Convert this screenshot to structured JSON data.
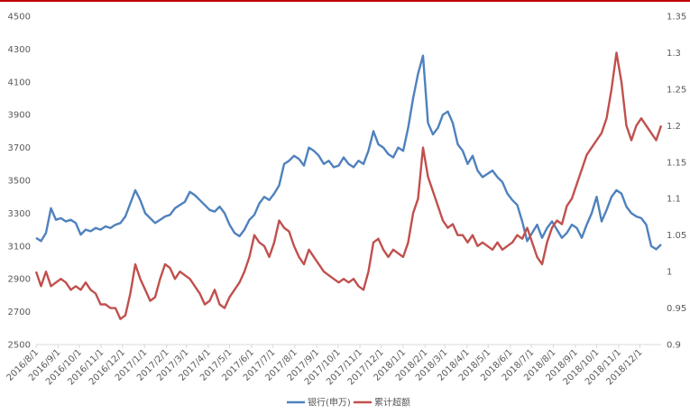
{
  "chart_data": {
    "type": "line",
    "title": "",
    "xlabel": "",
    "ylabel": "",
    "x_tick_labels": [
      "2016/8/1",
      "2016/9/1",
      "2016/10/1",
      "2016/11/1",
      "2016/12/1",
      "2017/1/1",
      "2017/2/1",
      "2017/3/1",
      "2017/4/1",
      "2017/5/1",
      "2017/6/1",
      "2017/7/1",
      "2017/8/1",
      "2017/9/1",
      "2017/10/1",
      "2017/11/1",
      "2017/12/1",
      "2018/1/1",
      "2018/2/1",
      "2018/3/1",
      "2018/4/1",
      "2018/5/1",
      "2018/6/1",
      "2018/7/1",
      "2018/8/1",
      "2018/9/1",
      "2018/10/1",
      "2018/11/1",
      "2018/12/1"
    ],
    "x_date_range": [
      "2016-08-01",
      "2018-12-31"
    ],
    "y_left": {
      "min": 2500,
      "max": 4500,
      "step": 200,
      "ticks": [
        "2500",
        "2700",
        "2900",
        "3100",
        "3300",
        "3500",
        "3700",
        "3900",
        "4100",
        "4300",
        "4500"
      ]
    },
    "y_right": {
      "min": 0.9,
      "max": 1.35,
      "step": 0.05,
      "ticks": [
        "0.9",
        "0.95",
        "1",
        "1.05",
        "1.1",
        "1.15",
        "1.2",
        "1.25",
        "1.3",
        "1.35"
      ]
    },
    "grid": false,
    "legend_position": "bottom",
    "series": [
      {
        "name": "银行(申万)",
        "axis": "left",
        "color": "#4f81bd",
        "points": [
          [
            "2016-08-01",
            3150
          ],
          [
            "2016-08-08",
            3130
          ],
          [
            "2016-08-15",
            3180
          ],
          [
            "2016-08-22",
            3330
          ],
          [
            "2016-08-29",
            3260
          ],
          [
            "2016-09-05",
            3270
          ],
          [
            "2016-09-12",
            3250
          ],
          [
            "2016-09-19",
            3260
          ],
          [
            "2016-09-26",
            3240
          ],
          [
            "2016-10-03",
            3170
          ],
          [
            "2016-10-10",
            3200
          ],
          [
            "2016-10-17",
            3190
          ],
          [
            "2016-10-24",
            3210
          ],
          [
            "2016-10-31",
            3200
          ],
          [
            "2016-11-07",
            3220
          ],
          [
            "2016-11-14",
            3210
          ],
          [
            "2016-11-21",
            3230
          ],
          [
            "2016-11-28",
            3240
          ],
          [
            "2016-12-05",
            3280
          ],
          [
            "2016-12-12",
            3360
          ],
          [
            "2016-12-19",
            3440
          ],
          [
            "2016-12-26",
            3380
          ],
          [
            "2017-01-02",
            3300
          ],
          [
            "2017-01-09",
            3270
          ],
          [
            "2017-01-16",
            3240
          ],
          [
            "2017-01-23",
            3260
          ],
          [
            "2017-01-30",
            3280
          ],
          [
            "2017-02-06",
            3290
          ],
          [
            "2017-02-13",
            3330
          ],
          [
            "2017-02-20",
            3350
          ],
          [
            "2017-02-27",
            3370
          ],
          [
            "2017-03-06",
            3430
          ],
          [
            "2017-03-13",
            3410
          ],
          [
            "2017-03-20",
            3380
          ],
          [
            "2017-03-27",
            3350
          ],
          [
            "2017-04-03",
            3320
          ],
          [
            "2017-04-10",
            3310
          ],
          [
            "2017-04-17",
            3340
          ],
          [
            "2017-04-24",
            3300
          ],
          [
            "2017-05-01",
            3230
          ],
          [
            "2017-05-08",
            3180
          ],
          [
            "2017-05-15",
            3160
          ],
          [
            "2017-05-22",
            3200
          ],
          [
            "2017-05-29",
            3260
          ],
          [
            "2017-06-05",
            3290
          ],
          [
            "2017-06-12",
            3360
          ],
          [
            "2017-06-19",
            3400
          ],
          [
            "2017-06-26",
            3380
          ],
          [
            "2017-07-03",
            3420
          ],
          [
            "2017-07-10",
            3470
          ],
          [
            "2017-07-17",
            3600
          ],
          [
            "2017-07-24",
            3620
          ],
          [
            "2017-07-31",
            3650
          ],
          [
            "2017-08-07",
            3630
          ],
          [
            "2017-08-14",
            3590
          ],
          [
            "2017-08-21",
            3700
          ],
          [
            "2017-08-28",
            3680
          ],
          [
            "2017-09-04",
            3650
          ],
          [
            "2017-09-11",
            3600
          ],
          [
            "2017-09-18",
            3620
          ],
          [
            "2017-09-25",
            3580
          ],
          [
            "2017-10-02",
            3590
          ],
          [
            "2017-10-09",
            3640
          ],
          [
            "2017-10-16",
            3600
          ],
          [
            "2017-10-23",
            3580
          ],
          [
            "2017-10-30",
            3620
          ],
          [
            "2017-11-06",
            3600
          ],
          [
            "2017-11-13",
            3680
          ],
          [
            "2017-11-20",
            3800
          ],
          [
            "2017-11-27",
            3720
          ],
          [
            "2017-12-04",
            3700
          ],
          [
            "2017-12-11",
            3660
          ],
          [
            "2017-12-18",
            3640
          ],
          [
            "2017-12-25",
            3700
          ],
          [
            "2018-01-01",
            3680
          ],
          [
            "2018-01-08",
            3820
          ],
          [
            "2018-01-15",
            4000
          ],
          [
            "2018-01-22",
            4150
          ],
          [
            "2018-01-29",
            4260
          ],
          [
            "2018-02-05",
            3850
          ],
          [
            "2018-02-12",
            3780
          ],
          [
            "2018-02-19",
            3820
          ],
          [
            "2018-02-26",
            3900
          ],
          [
            "2018-03-05",
            3920
          ],
          [
            "2018-03-12",
            3850
          ],
          [
            "2018-03-19",
            3720
          ],
          [
            "2018-03-26",
            3680
          ],
          [
            "2018-04-02",
            3600
          ],
          [
            "2018-04-09",
            3650
          ],
          [
            "2018-04-16",
            3560
          ],
          [
            "2018-04-23",
            3520
          ],
          [
            "2018-04-30",
            3540
          ],
          [
            "2018-05-07",
            3560
          ],
          [
            "2018-05-14",
            3520
          ],
          [
            "2018-05-21",
            3490
          ],
          [
            "2018-05-28",
            3420
          ],
          [
            "2018-06-04",
            3380
          ],
          [
            "2018-06-11",
            3350
          ],
          [
            "2018-06-18",
            3250
          ],
          [
            "2018-06-25",
            3130
          ],
          [
            "2018-07-02",
            3180
          ],
          [
            "2018-07-09",
            3230
          ],
          [
            "2018-07-16",
            3150
          ],
          [
            "2018-07-23",
            3210
          ],
          [
            "2018-07-30",
            3250
          ],
          [
            "2018-08-06",
            3200
          ],
          [
            "2018-08-13",
            3150
          ],
          [
            "2018-08-20",
            3180
          ],
          [
            "2018-08-27",
            3230
          ],
          [
            "2018-09-03",
            3210
          ],
          [
            "2018-09-10",
            3150
          ],
          [
            "2018-09-17",
            3230
          ],
          [
            "2018-09-24",
            3300
          ],
          [
            "2018-10-01",
            3400
          ],
          [
            "2018-10-08",
            3250
          ],
          [
            "2018-10-15",
            3320
          ],
          [
            "2018-10-22",
            3400
          ],
          [
            "2018-10-29",
            3440
          ],
          [
            "2018-11-05",
            3420
          ],
          [
            "2018-11-12",
            3340
          ],
          [
            "2018-11-19",
            3300
          ],
          [
            "2018-11-26",
            3280
          ],
          [
            "2018-12-03",
            3270
          ],
          [
            "2018-12-10",
            3230
          ],
          [
            "2018-12-17",
            3100
          ],
          [
            "2018-12-24",
            3080
          ],
          [
            "2018-12-31",
            3110
          ]
        ]
      },
      {
        "name": "累计超额",
        "axis": "right",
        "color": "#c0504d",
        "points": [
          [
            "2016-08-01",
            1.0
          ],
          [
            "2016-08-08",
            0.98
          ],
          [
            "2016-08-15",
            1.0
          ],
          [
            "2016-08-22",
            0.98
          ],
          [
            "2016-08-29",
            0.985
          ],
          [
            "2016-09-05",
            0.99
          ],
          [
            "2016-09-12",
            0.985
          ],
          [
            "2016-09-19",
            0.975
          ],
          [
            "2016-09-26",
            0.98
          ],
          [
            "2016-10-03",
            0.975
          ],
          [
            "2016-10-10",
            0.985
          ],
          [
            "2016-10-17",
            0.975
          ],
          [
            "2016-10-24",
            0.97
          ],
          [
            "2016-10-31",
            0.955
          ],
          [
            "2016-11-07",
            0.955
          ],
          [
            "2016-11-14",
            0.95
          ],
          [
            "2016-11-21",
            0.95
          ],
          [
            "2016-11-28",
            0.935
          ],
          [
            "2016-12-05",
            0.94
          ],
          [
            "2016-12-12",
            0.97
          ],
          [
            "2016-12-19",
            1.01
          ],
          [
            "2016-12-26",
            0.99
          ],
          [
            "2017-01-02",
            0.975
          ],
          [
            "2017-01-09",
            0.96
          ],
          [
            "2017-01-16",
            0.965
          ],
          [
            "2017-01-23",
            0.99
          ],
          [
            "2017-01-30",
            1.01
          ],
          [
            "2017-02-06",
            1.005
          ],
          [
            "2017-02-13",
            0.99
          ],
          [
            "2017-02-20",
            1.0
          ],
          [
            "2017-02-27",
            0.995
          ],
          [
            "2017-03-06",
            0.99
          ],
          [
            "2017-03-13",
            0.98
          ],
          [
            "2017-03-20",
            0.97
          ],
          [
            "2017-03-27",
            0.955
          ],
          [
            "2017-04-03",
            0.96
          ],
          [
            "2017-04-10",
            0.975
          ],
          [
            "2017-04-17",
            0.955
          ],
          [
            "2017-04-24",
            0.95
          ],
          [
            "2017-05-01",
            0.965
          ],
          [
            "2017-05-08",
            0.975
          ],
          [
            "2017-05-15",
            0.985
          ],
          [
            "2017-05-22",
            1.0
          ],
          [
            "2017-05-29",
            1.02
          ],
          [
            "2017-06-05",
            1.05
          ],
          [
            "2017-06-12",
            1.04
          ],
          [
            "2017-06-19",
            1.035
          ],
          [
            "2017-06-26",
            1.02
          ],
          [
            "2017-07-03",
            1.04
          ],
          [
            "2017-07-10",
            1.07
          ],
          [
            "2017-07-17",
            1.06
          ],
          [
            "2017-07-24",
            1.055
          ],
          [
            "2017-07-31",
            1.035
          ],
          [
            "2017-08-07",
            1.02
          ],
          [
            "2017-08-14",
            1.01
          ],
          [
            "2017-08-21",
            1.03
          ],
          [
            "2017-08-28",
            1.02
          ],
          [
            "2017-09-04",
            1.01
          ],
          [
            "2017-09-11",
            1.0
          ],
          [
            "2017-09-18",
            0.995
          ],
          [
            "2017-09-25",
            0.99
          ],
          [
            "2017-10-02",
            0.985
          ],
          [
            "2017-10-09",
            0.99
          ],
          [
            "2017-10-16",
            0.985
          ],
          [
            "2017-10-23",
            0.99
          ],
          [
            "2017-10-30",
            0.98
          ],
          [
            "2017-11-06",
            0.975
          ],
          [
            "2017-11-13",
            1.0
          ],
          [
            "2017-11-20",
            1.04
          ],
          [
            "2017-11-27",
            1.045
          ],
          [
            "2017-12-04",
            1.03
          ],
          [
            "2017-12-11",
            1.02
          ],
          [
            "2017-12-18",
            1.03
          ],
          [
            "2017-12-25",
            1.025
          ],
          [
            "2018-01-01",
            1.02
          ],
          [
            "2018-01-08",
            1.04
          ],
          [
            "2018-01-15",
            1.08
          ],
          [
            "2018-01-22",
            1.1
          ],
          [
            "2018-01-29",
            1.17
          ],
          [
            "2018-02-05",
            1.13
          ],
          [
            "2018-02-12",
            1.11
          ],
          [
            "2018-02-19",
            1.09
          ],
          [
            "2018-02-26",
            1.07
          ],
          [
            "2018-03-05",
            1.06
          ],
          [
            "2018-03-12",
            1.065
          ],
          [
            "2018-03-19",
            1.05
          ],
          [
            "2018-03-26",
            1.05
          ],
          [
            "2018-04-02",
            1.04
          ],
          [
            "2018-04-09",
            1.05
          ],
          [
            "2018-04-16",
            1.035
          ],
          [
            "2018-04-23",
            1.04
          ],
          [
            "2018-04-30",
            1.035
          ],
          [
            "2018-05-07",
            1.03
          ],
          [
            "2018-05-14",
            1.04
          ],
          [
            "2018-05-21",
            1.03
          ],
          [
            "2018-05-28",
            1.035
          ],
          [
            "2018-06-04",
            1.04
          ],
          [
            "2018-06-11",
            1.05
          ],
          [
            "2018-06-18",
            1.045
          ],
          [
            "2018-06-25",
            1.06
          ],
          [
            "2018-07-02",
            1.04
          ],
          [
            "2018-07-09",
            1.02
          ],
          [
            "2018-07-16",
            1.01
          ],
          [
            "2018-07-23",
            1.04
          ],
          [
            "2018-07-30",
            1.06
          ],
          [
            "2018-08-06",
            1.07
          ],
          [
            "2018-08-13",
            1.065
          ],
          [
            "2018-08-20",
            1.09
          ],
          [
            "2018-08-27",
            1.1
          ],
          [
            "2018-09-03",
            1.12
          ],
          [
            "2018-09-10",
            1.14
          ],
          [
            "2018-09-17",
            1.16
          ],
          [
            "2018-09-24",
            1.17
          ],
          [
            "2018-10-01",
            1.18
          ],
          [
            "2018-10-08",
            1.19
          ],
          [
            "2018-10-15",
            1.21
          ],
          [
            "2018-10-22",
            1.25
          ],
          [
            "2018-10-29",
            1.3
          ],
          [
            "2018-11-05",
            1.26
          ],
          [
            "2018-11-12",
            1.2
          ],
          [
            "2018-11-19",
            1.18
          ],
          [
            "2018-11-26",
            1.2
          ],
          [
            "2018-12-03",
            1.21
          ],
          [
            "2018-12-10",
            1.2
          ],
          [
            "2018-12-17",
            1.19
          ],
          [
            "2018-12-24",
            1.18
          ],
          [
            "2018-12-31",
            1.2
          ]
        ]
      }
    ]
  }
}
